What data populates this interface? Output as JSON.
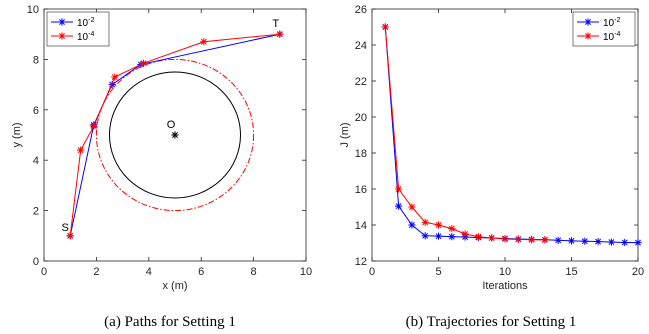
{
  "colors": {
    "blue": "#0000ff",
    "red": "#ff0000",
    "axis": "#262626",
    "circle": "#000000"
  },
  "chart_data": [
    {
      "type": "line",
      "xlabel": "x (m)",
      "ylabel": "y (m)",
      "xlim": [
        0,
        10
      ],
      "ylim": [
        0,
        10
      ],
      "xticks": [
        "0",
        "2",
        "4",
        "6",
        "8",
        "10"
      ],
      "yticks": [
        "0",
        "2",
        "4",
        "6",
        "8",
        "10"
      ],
      "grid": false,
      "legend_position": "top-left",
      "caption": "(a)  Paths for Setting 1",
      "series": [
        {
          "name": "10-2",
          "base": "10",
          "exp": "-2",
          "color": "#0000ff",
          "x": [
            1,
            1.9,
            2.6,
            3.7,
            9
          ],
          "y": [
            1,
            5.4,
            7.0,
            7.8,
            9
          ]
        },
        {
          "name": "10-4",
          "base": "10",
          "exp": "-4",
          "color": "#ff0000",
          "x": [
            1,
            1.4,
            1.9,
            2.7,
            3.8,
            6.1,
            9
          ],
          "y": [
            1,
            4.4,
            5.35,
            7.3,
            7.85,
            8.7,
            9
          ]
        }
      ],
      "annotations": [
        {
          "label": "S",
          "x": 1,
          "y": 1
        },
        {
          "label": "T",
          "x": 9,
          "y": 9
        },
        {
          "label": "O",
          "x": 5,
          "y": 5
        }
      ],
      "obstacle": {
        "center": [
          5,
          5
        ],
        "radius": 2.5,
        "safety_radius": 3.0
      }
    },
    {
      "type": "line",
      "xlabel": "Iterations",
      "ylabel": "J (m)",
      "xlim": [
        0,
        20
      ],
      "ylim": [
        12,
        26
      ],
      "xticks": [
        "0",
        "5",
        "10",
        "15",
        "20"
      ],
      "yticks": [
        "12",
        "14",
        "16",
        "18",
        "20",
        "22",
        "24",
        "26"
      ],
      "grid": false,
      "legend_position": "top-right",
      "caption": "(b)  Trajectories for Setting 1",
      "series": [
        {
          "name": "10-2",
          "base": "10",
          "exp": "-2",
          "color": "#0000ff",
          "x": [
            1,
            2,
            3,
            4,
            5,
            6,
            7,
            8,
            9,
            10,
            11,
            12,
            13,
            14,
            15,
            16,
            17,
            18,
            19,
            20
          ],
          "y": [
            25,
            15.05,
            14.0,
            13.4,
            13.38,
            13.35,
            13.33,
            13.3,
            13.28,
            13.25,
            13.22,
            13.2,
            13.18,
            13.15,
            13.12,
            13.1,
            13.08,
            13.05,
            13.03,
            13.02
          ]
        },
        {
          "name": "10-4",
          "base": "10",
          "exp": "-4",
          "color": "#ff0000",
          "x": [
            1,
            2,
            3,
            4,
            5,
            6,
            7,
            8,
            9,
            10,
            11,
            12,
            13
          ],
          "y": [
            25,
            16.0,
            15.0,
            14.15,
            14.0,
            13.8,
            13.5,
            13.35,
            13.28,
            13.22,
            13.2,
            13.18,
            13.17
          ]
        }
      ]
    }
  ]
}
